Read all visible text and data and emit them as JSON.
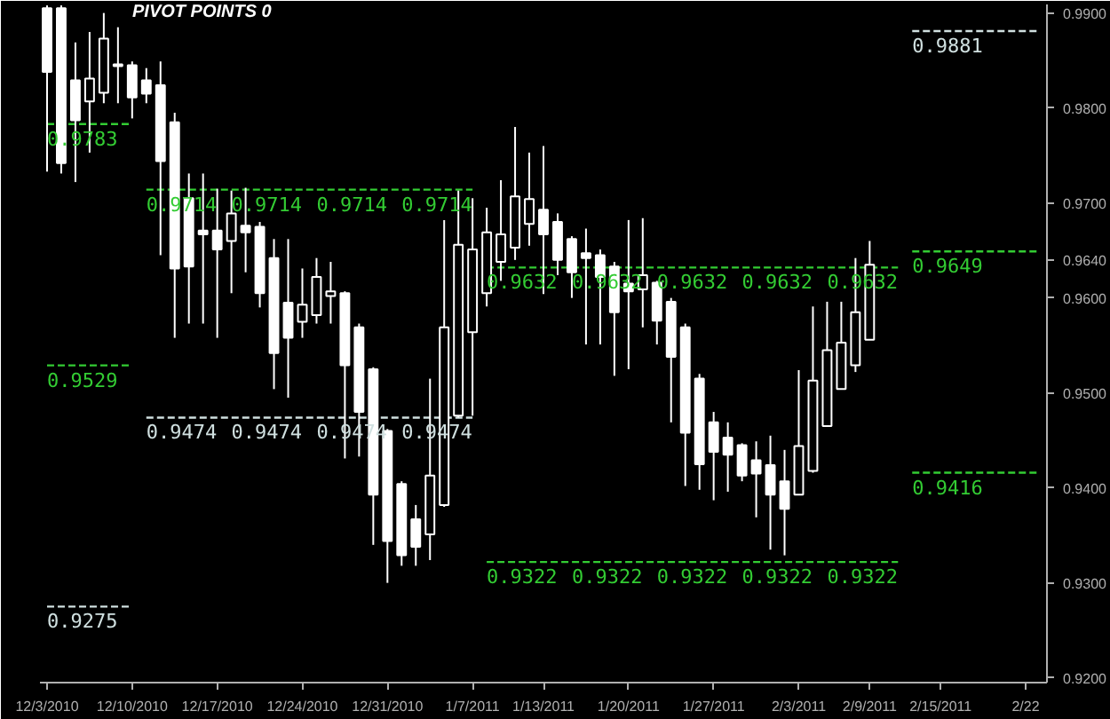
{
  "chart_data": {
    "type": "candlestick",
    "title": "PIVOT POINTS 0",
    "color": "#ffffff",
    "categories": [
      "12/3/2010",
      null,
      null,
      null,
      null,
      null,
      "12/10/2010",
      null,
      null,
      null,
      null,
      null,
      "12/17/2010",
      null,
      null,
      null,
      null,
      null,
      "12/24/2010",
      null,
      null,
      null,
      null,
      null,
      "12/31/2010",
      null,
      null,
      null,
      null,
      null,
      "1/7/2011",
      null,
      null,
      null,
      null,
      "1/13/2011",
      null,
      null,
      null,
      null,
      null,
      "1/20/2011",
      null,
      null,
      null,
      null,
      null,
      "1/27/2011",
      null,
      null,
      null,
      null,
      null,
      "2/3/2011",
      null,
      null,
      null,
      null,
      "2/9/2011",
      null,
      null,
      null,
      null,
      "2/15/2011",
      null,
      null,
      null,
      null,
      null,
      "2/22",
      null
    ],
    "ohlc": [
      [
        0.9905,
        0.9908,
        0.9733,
        0.9838
      ],
      [
        0.9905,
        0.9908,
        0.9731,
        0.9742
      ],
      [
        0.9829,
        0.9869,
        0.9722,
        0.9787
      ],
      [
        0.9807,
        0.988,
        0.9753,
        0.9831
      ],
      [
        0.9816,
        0.99,
        0.9805,
        0.9873
      ],
      [
        0.9846,
        0.9885,
        0.9805,
        0.9844
      ],
      [
        0.9845,
        0.9849,
        0.9789,
        0.9811
      ],
      [
        0.9829,
        0.9842,
        0.9805,
        0.9815
      ],
      [
        0.9824,
        0.9849,
        0.9645,
        0.9744
      ],
      [
        0.9785,
        0.9795,
        0.9558,
        0.9631
      ],
      [
        0.9705,
        0.9731,
        0.9573,
        0.9633
      ],
      [
        0.9671,
        0.9731,
        0.9573,
        0.9667
      ],
      [
        0.9671,
        0.9715,
        0.9558,
        0.9651
      ],
      [
        0.966,
        0.9713,
        0.9605,
        0.9689
      ],
      [
        0.9676,
        0.9716,
        0.9627,
        0.9669
      ],
      [
        0.9675,
        0.968,
        0.959,
        0.9605
      ],
      [
        0.9642,
        0.9662,
        0.9504,
        0.9542
      ],
      [
        0.9595,
        0.9662,
        0.9495,
        0.9558
      ],
      [
        0.9575,
        0.9631,
        0.9558,
        0.9593
      ],
      [
        0.9582,
        0.9642,
        0.9573,
        0.9622
      ],
      [
        0.9602,
        0.9638,
        0.9573,
        0.9607
      ],
      [
        0.9605,
        0.9607,
        0.9431,
        0.9529
      ],
      [
        0.9569,
        0.9573,
        0.9433,
        0.948
      ],
      [
        0.9525,
        0.9527,
        0.934,
        0.9393
      ],
      [
        0.946,
        0.9462,
        0.93,
        0.9344
      ],
      [
        0.9404,
        0.9407,
        0.9318,
        0.9329
      ],
      [
        0.9367,
        0.9382,
        0.9318,
        0.9338
      ],
      [
        0.9351,
        0.9515,
        0.9324,
        0.9413
      ],
      [
        0.9382,
        0.9682,
        0.938,
        0.9569
      ],
      [
        0.9476,
        0.9713,
        0.9474,
        0.9656
      ],
      [
        0.9564,
        0.9705,
        0.9476,
        0.9651
      ],
      [
        0.9605,
        0.9695,
        0.9591,
        0.9669
      ],
      [
        0.9638,
        0.9724,
        0.9618,
        0.9667
      ],
      [
        0.9653,
        0.978,
        0.964,
        0.9707
      ],
      [
        0.9678,
        0.9753,
        0.9655,
        0.9704
      ],
      [
        0.9693,
        0.976,
        0.9604,
        0.9667
      ],
      [
        0.968,
        0.9689,
        0.9624,
        0.964
      ],
      [
        0.9662,
        0.9665,
        0.96,
        0.9627
      ],
      [
        0.9647,
        0.9673,
        0.9551,
        0.9642
      ],
      [
        0.9645,
        0.9651,
        0.9551,
        0.9622
      ],
      [
        0.9633,
        0.9638,
        0.9518,
        0.9585
      ],
      [
        0.9615,
        0.9682,
        0.9525,
        0.9607
      ],
      [
        0.9609,
        0.9684,
        0.9569,
        0.9624
      ],
      [
        0.9616,
        0.9618,
        0.9551,
        0.9576
      ],
      [
        0.9596,
        0.96,
        0.9469,
        0.9538
      ],
      [
        0.9569,
        0.9573,
        0.9402,
        0.9458
      ],
      [
        0.9515,
        0.952,
        0.9398,
        0.9425
      ],
      [
        0.9469,
        0.948,
        0.9387,
        0.9438
      ],
      [
        0.9453,
        0.9469,
        0.9396,
        0.9435
      ],
      [
        0.9445,
        0.9447,
        0.9407,
        0.9413
      ],
      [
        0.9429,
        0.9449,
        0.9369,
        0.9415
      ],
      [
        0.9424,
        0.9455,
        0.9335,
        0.9393
      ],
      [
        0.9407,
        0.944,
        0.9329,
        0.9378
      ],
      [
        0.9393,
        0.9524,
        0.9393,
        0.9444
      ],
      [
        0.9418,
        0.9591,
        0.9416,
        0.9513
      ],
      [
        0.9465,
        0.9596,
        0.9465,
        0.9545
      ],
      [
        0.9504,
        0.9596,
        0.9504,
        0.9553
      ],
      [
        0.9529,
        0.9642,
        0.9522,
        0.9585
      ],
      [
        0.9556,
        0.966,
        0.9556,
        0.9635
      ],
      null,
      null,
      null,
      null,
      null,
      null,
      null,
      null,
      null,
      null,
      null,
      null
    ],
    "ylim": [
      0.9195,
      0.9909
    ],
    "yticks": [
      {
        "value": 0.92,
        "label": "0.9200"
      },
      {
        "value": 0.93,
        "label": "0.9300"
      },
      {
        "value": 0.94,
        "label": "0.9400"
      },
      {
        "value": 0.95,
        "label": "0.9500"
      },
      {
        "value": 0.96,
        "label": "0.9600"
      },
      {
        "value": 0.964,
        "label": "0.9640"
      },
      {
        "value": 0.97,
        "label": "0.9700"
      },
      {
        "value": 0.98,
        "label": "0.9800"
      },
      {
        "value": 0.99,
        "label": "0.9900"
      }
    ],
    "series": [
      {
        "type": "line",
        "color": "#33cc33",
        "line_style": "dashed",
        "values": [
          0.9783,
          0.9783,
          0.9783,
          0.9783,
          0.9783,
          0.9783,
          0.9783,
          null,
          null,
          null,
          null,
          null,
          null,
          null,
          null,
          null,
          null,
          null,
          null,
          null,
          null,
          null,
          null,
          null,
          null,
          null,
          null,
          null,
          null,
          null,
          null,
          null,
          null,
          null,
          null,
          null,
          null,
          null,
          null,
          null,
          null,
          null,
          null,
          null,
          null,
          null,
          null,
          null,
          null,
          null,
          null,
          null,
          null,
          null,
          null,
          null,
          null,
          null,
          null,
          null,
          null,
          null,
          null,
          null,
          null,
          null,
          null,
          null,
          null,
          null,
          null
        ],
        "value_labels": [
          "0.9783",
          null,
          null,
          null,
          null,
          null,
          null,
          null,
          null,
          null,
          null,
          null,
          null,
          null,
          null,
          null,
          null,
          null,
          null,
          null,
          null,
          null,
          null,
          null,
          null,
          null,
          null,
          null,
          null,
          null,
          null,
          null,
          null,
          null,
          null,
          null,
          null,
          null,
          null,
          null,
          null,
          null,
          null,
          null,
          null,
          null,
          null,
          null,
          null,
          null,
          null,
          null,
          null,
          null,
          null,
          null,
          null,
          null,
          null,
          null,
          null,
          null,
          null,
          null,
          null,
          null,
          null,
          null,
          null,
          null,
          null
        ]
      },
      {
        "type": "line",
        "color": "#33cc33",
        "line_style": "dashed",
        "values": [
          0.9529,
          0.9529,
          0.9529,
          0.9529,
          0.9529,
          0.9529,
          0.9529,
          null,
          null,
          null,
          null,
          null,
          null,
          null,
          null,
          null,
          null,
          null,
          null,
          null,
          null,
          null,
          null,
          null,
          null,
          null,
          null,
          null,
          null,
          null,
          null,
          null,
          null,
          null,
          null,
          null,
          null,
          null,
          null,
          null,
          null,
          null,
          null,
          null,
          null,
          null,
          null,
          null,
          null,
          null,
          null,
          null,
          null,
          null,
          null,
          null,
          null,
          null,
          null,
          null,
          null,
          null,
          null,
          null,
          null,
          null,
          null,
          null,
          null,
          null,
          null
        ],
        "value_labels": [
          "0.9529",
          null,
          null,
          null,
          null,
          null,
          null,
          null,
          null,
          null,
          null,
          null,
          null,
          null,
          null,
          null,
          null,
          null,
          null,
          null,
          null,
          null,
          null,
          null,
          null,
          null,
          null,
          null,
          null,
          null,
          null,
          null,
          null,
          null,
          null,
          null,
          null,
          null,
          null,
          null,
          null,
          null,
          null,
          null,
          null,
          null,
          null,
          null,
          null,
          null,
          null,
          null,
          null,
          null,
          null,
          null,
          null,
          null,
          null,
          null,
          null,
          null,
          null,
          null,
          null,
          null,
          null,
          null,
          null,
          null,
          null
        ]
      },
      {
        "type": "line",
        "color": "#d0e0e0",
        "line_style": "dashed",
        "values": [
          0.9275,
          0.9275,
          0.9275,
          0.9275,
          0.9275,
          0.9275,
          0.9275,
          null,
          null,
          null,
          null,
          null,
          null,
          null,
          null,
          null,
          null,
          null,
          null,
          null,
          null,
          null,
          null,
          null,
          null,
          null,
          null,
          null,
          null,
          null,
          null,
          null,
          null,
          null,
          null,
          null,
          null,
          null,
          null,
          null,
          null,
          null,
          null,
          null,
          null,
          null,
          null,
          null,
          null,
          null,
          null,
          null,
          null,
          null,
          null,
          null,
          null,
          null,
          null,
          null,
          null,
          null,
          null,
          null,
          null,
          null,
          null,
          null,
          null,
          null,
          null
        ],
        "value_labels": [
          "0.9275",
          null,
          null,
          null,
          null,
          null,
          null,
          null,
          null,
          null,
          null,
          null,
          null,
          null,
          null,
          null,
          null,
          null,
          null,
          null,
          null,
          null,
          null,
          null,
          null,
          null,
          null,
          null,
          null,
          null,
          null,
          null,
          null,
          null,
          null,
          null,
          null,
          null,
          null,
          null,
          null,
          null,
          null,
          null,
          null,
          null,
          null,
          null,
          null,
          null,
          null,
          null,
          null,
          null,
          null,
          null,
          null,
          null,
          null,
          null,
          null,
          null,
          null,
          null,
          null,
          null,
          null,
          null,
          null,
          null,
          null
        ]
      },
      {
        "type": "line",
        "color": "#33cc33",
        "line_style": "dashed",
        "values": [
          null,
          null,
          null,
          null,
          null,
          null,
          null,
          0.9714,
          0.9714,
          0.9714,
          0.9714,
          0.9714,
          0.9714,
          0.9714,
          0.9714,
          0.9714,
          0.9714,
          0.9714,
          0.9714,
          0.9714,
          0.9714,
          0.9714,
          0.9714,
          0.9714,
          0.9714,
          0.9714,
          0.9714,
          0.9714,
          0.9714,
          0.9714,
          0.9714,
          null,
          null,
          null,
          null,
          null,
          null,
          null,
          null,
          null,
          null,
          null,
          null,
          null,
          null,
          null,
          null,
          null,
          null,
          null,
          null,
          null,
          null,
          null,
          null,
          null,
          null,
          null,
          null,
          null,
          null,
          null,
          null,
          null,
          null,
          null,
          null,
          null,
          null,
          null,
          null
        ],
        "value_labels": [
          null,
          null,
          null,
          null,
          null,
          null,
          null,
          "0.9714",
          null,
          null,
          null,
          null,
          null,
          "0.9714",
          null,
          null,
          null,
          null,
          null,
          "0.9714",
          null,
          null,
          null,
          null,
          null,
          "0.9714",
          null,
          null,
          null,
          null,
          null,
          null,
          null,
          null,
          null,
          null,
          null,
          null,
          null,
          null,
          null,
          null,
          null,
          null,
          null,
          null,
          null,
          null,
          null,
          null,
          null,
          null,
          null,
          null,
          null,
          null,
          null,
          null,
          null,
          null,
          null,
          null,
          null,
          null,
          null,
          null,
          null,
          null,
          null,
          null,
          null
        ]
      },
      {
        "type": "line",
        "color": "#d0e0e0",
        "line_style": "dashed",
        "values": [
          null,
          null,
          null,
          null,
          null,
          null,
          null,
          0.9474,
          0.9474,
          0.9474,
          0.9474,
          0.9474,
          0.9474,
          0.9474,
          0.9474,
          0.9474,
          0.9474,
          0.9474,
          0.9474,
          0.9474,
          0.9474,
          0.9474,
          0.9474,
          0.9474,
          0.9474,
          0.9474,
          0.9474,
          0.9474,
          0.9474,
          0.9474,
          0.9474,
          null,
          null,
          null,
          null,
          null,
          null,
          null,
          null,
          null,
          null,
          null,
          null,
          null,
          null,
          null,
          null,
          null,
          null,
          null,
          null,
          null,
          null,
          null,
          null,
          null,
          null,
          null,
          null,
          null,
          null,
          null,
          null,
          null,
          null,
          null,
          null,
          null,
          null,
          null,
          null
        ],
        "value_labels": [
          null,
          null,
          null,
          null,
          null,
          null,
          null,
          "0.9474",
          null,
          null,
          null,
          null,
          null,
          "0.9474",
          null,
          null,
          null,
          null,
          null,
          "0.9474",
          null,
          null,
          null,
          null,
          null,
          "0.9474",
          null,
          null,
          null,
          null,
          null,
          null,
          null,
          null,
          null,
          null,
          null,
          null,
          null,
          null,
          null,
          null,
          null,
          null,
          null,
          null,
          null,
          null,
          null,
          null,
          null,
          null,
          null,
          null,
          null,
          null,
          null,
          null,
          null,
          null,
          null,
          null,
          null,
          null,
          null,
          null,
          null,
          null,
          null,
          null,
          null
        ]
      },
      {
        "type": "line",
        "color": "#33cc33",
        "line_style": "dashed",
        "values": [
          null,
          null,
          null,
          null,
          null,
          null,
          null,
          null,
          null,
          null,
          null,
          null,
          null,
          null,
          null,
          null,
          null,
          null,
          null,
          null,
          null,
          null,
          null,
          null,
          null,
          null,
          null,
          null,
          null,
          null,
          null,
          0.9632,
          0.9632,
          0.9632,
          0.9632,
          0.9632,
          0.9632,
          0.9632,
          0.9632,
          0.9632,
          0.9632,
          0.9632,
          0.9632,
          0.9632,
          0.9632,
          0.9632,
          0.9632,
          0.9632,
          0.9632,
          0.9632,
          0.9632,
          0.9632,
          0.9632,
          0.9632,
          0.9632,
          0.9632,
          0.9632,
          0.9632,
          0.9632,
          0.9632,
          0.9632,
          null,
          null,
          null,
          null,
          null,
          null,
          null,
          null,
          null,
          null
        ],
        "value_labels": [
          null,
          null,
          null,
          null,
          null,
          null,
          null,
          null,
          null,
          null,
          null,
          null,
          null,
          null,
          null,
          null,
          null,
          null,
          null,
          null,
          null,
          null,
          null,
          null,
          null,
          null,
          null,
          null,
          null,
          null,
          null,
          "0.9632",
          null,
          null,
          null,
          null,
          null,
          "0.9632",
          null,
          null,
          null,
          null,
          null,
          "0.9632",
          null,
          null,
          null,
          null,
          null,
          "0.9632",
          null,
          null,
          null,
          null,
          null,
          "0.9632",
          null,
          null,
          null,
          null,
          null,
          null,
          null,
          null,
          null,
          null,
          null,
          null,
          null,
          null,
          null
        ]
      },
      {
        "type": "line",
        "color": "#33cc33",
        "line_style": "dashed",
        "values": [
          null,
          null,
          null,
          null,
          null,
          null,
          null,
          null,
          null,
          null,
          null,
          null,
          null,
          null,
          null,
          null,
          null,
          null,
          null,
          null,
          null,
          null,
          null,
          null,
          null,
          null,
          null,
          null,
          null,
          null,
          null,
          0.9322,
          0.9322,
          0.9322,
          0.9322,
          0.9322,
          0.9322,
          0.9322,
          0.9322,
          0.9322,
          0.9322,
          0.9322,
          0.9322,
          0.9322,
          0.9322,
          0.9322,
          0.9322,
          0.9322,
          0.9322,
          0.9322,
          0.9322,
          0.9322,
          0.9322,
          0.9322,
          0.9322,
          0.9322,
          0.9322,
          0.9322,
          0.9322,
          0.9322,
          0.9322,
          null,
          null,
          null,
          null,
          null,
          null,
          null,
          null,
          null,
          null
        ],
        "value_labels": [
          null,
          null,
          null,
          null,
          null,
          null,
          null,
          null,
          null,
          null,
          null,
          null,
          null,
          null,
          null,
          null,
          null,
          null,
          null,
          null,
          null,
          null,
          null,
          null,
          null,
          null,
          null,
          null,
          null,
          null,
          null,
          "0.9322",
          null,
          null,
          null,
          null,
          null,
          "0.9322",
          null,
          null,
          null,
          null,
          null,
          "0.9322",
          null,
          null,
          null,
          null,
          null,
          "0.9322",
          null,
          null,
          null,
          null,
          null,
          "0.9322",
          null,
          null,
          null,
          null,
          null,
          null,
          null,
          null,
          null,
          null,
          null,
          null,
          null,
          null,
          null
        ]
      },
      {
        "type": "line",
        "color": "#d0e0e0",
        "line_style": "dashed",
        "values": [
          null,
          null,
          null,
          null,
          null,
          null,
          null,
          null,
          null,
          null,
          null,
          null,
          null,
          null,
          null,
          null,
          null,
          null,
          null,
          null,
          null,
          null,
          null,
          null,
          null,
          null,
          null,
          null,
          null,
          null,
          null,
          null,
          null,
          null,
          null,
          null,
          null,
          null,
          null,
          null,
          null,
          null,
          null,
          null,
          null,
          null,
          null,
          null,
          null,
          null,
          null,
          null,
          null,
          null,
          null,
          null,
          null,
          null,
          null,
          null,
          null,
          0.9881,
          0.9881,
          0.9881,
          0.9881,
          0.9881,
          0.9881,
          0.9881,
          0.9881,
          0.9881,
          0.9881
        ],
        "value_labels": [
          null,
          null,
          null,
          null,
          null,
          null,
          null,
          null,
          null,
          null,
          null,
          null,
          null,
          null,
          null,
          null,
          null,
          null,
          null,
          null,
          null,
          null,
          null,
          null,
          null,
          null,
          null,
          null,
          null,
          null,
          null,
          null,
          null,
          null,
          null,
          null,
          null,
          null,
          null,
          null,
          null,
          null,
          null,
          null,
          null,
          null,
          null,
          null,
          null,
          null,
          null,
          null,
          null,
          null,
          null,
          null,
          null,
          null,
          null,
          null,
          null,
          "0.9881",
          null,
          null,
          null,
          null,
          null,
          null,
          null,
          null,
          null
        ]
      },
      {
        "type": "line",
        "color": "#33cc33",
        "line_style": "dashed",
        "values": [
          null,
          null,
          null,
          null,
          null,
          null,
          null,
          null,
          null,
          null,
          null,
          null,
          null,
          null,
          null,
          null,
          null,
          null,
          null,
          null,
          null,
          null,
          null,
          null,
          null,
          null,
          null,
          null,
          null,
          null,
          null,
          null,
          null,
          null,
          null,
          null,
          null,
          null,
          null,
          null,
          null,
          null,
          null,
          null,
          null,
          null,
          null,
          null,
          null,
          null,
          null,
          null,
          null,
          null,
          null,
          null,
          null,
          null,
          null,
          null,
          null,
          0.9649,
          0.9649,
          0.9649,
          0.9649,
          0.9649,
          0.9649,
          0.9649,
          0.9649,
          0.9649,
          0.9649
        ],
        "value_labels": [
          null,
          null,
          null,
          null,
          null,
          null,
          null,
          null,
          null,
          null,
          null,
          null,
          null,
          null,
          null,
          null,
          null,
          null,
          null,
          null,
          null,
          null,
          null,
          null,
          null,
          null,
          null,
          null,
          null,
          null,
          null,
          null,
          null,
          null,
          null,
          null,
          null,
          null,
          null,
          null,
          null,
          null,
          null,
          null,
          null,
          null,
          null,
          null,
          null,
          null,
          null,
          null,
          null,
          null,
          null,
          null,
          null,
          null,
          null,
          null,
          null,
          "0.9649",
          null,
          null,
          null,
          null,
          null,
          null,
          null,
          null,
          null
        ]
      },
      {
        "type": "line",
        "color": "#33cc33",
        "line_style": "dashed",
        "values": [
          null,
          null,
          null,
          null,
          null,
          null,
          null,
          null,
          null,
          null,
          null,
          null,
          null,
          null,
          null,
          null,
          null,
          null,
          null,
          null,
          null,
          null,
          null,
          null,
          null,
          null,
          null,
          null,
          null,
          null,
          null,
          null,
          null,
          null,
          null,
          null,
          null,
          null,
          null,
          null,
          null,
          null,
          null,
          null,
          null,
          null,
          null,
          null,
          null,
          null,
          null,
          null,
          null,
          null,
          null,
          null,
          null,
          null,
          null,
          null,
          null,
          0.9416,
          0.9416,
          0.9416,
          0.9416,
          0.9416,
          0.9416,
          0.9416,
          0.9416,
          0.9416,
          0.9416
        ],
        "value_labels": [
          null,
          null,
          null,
          null,
          null,
          null,
          null,
          null,
          null,
          null,
          null,
          null,
          null,
          null,
          null,
          null,
          null,
          null,
          null,
          null,
          null,
          null,
          null,
          null,
          null,
          null,
          null,
          null,
          null,
          null,
          null,
          null,
          null,
          null,
          null,
          null,
          null,
          null,
          null,
          null,
          null,
          null,
          null,
          null,
          null,
          null,
          null,
          null,
          null,
          null,
          null,
          null,
          null,
          null,
          null,
          null,
          null,
          null,
          null,
          null,
          null,
          "0.9416",
          null,
          null,
          null,
          null,
          null,
          null,
          null,
          null,
          null
        ]
      }
    ]
  }
}
